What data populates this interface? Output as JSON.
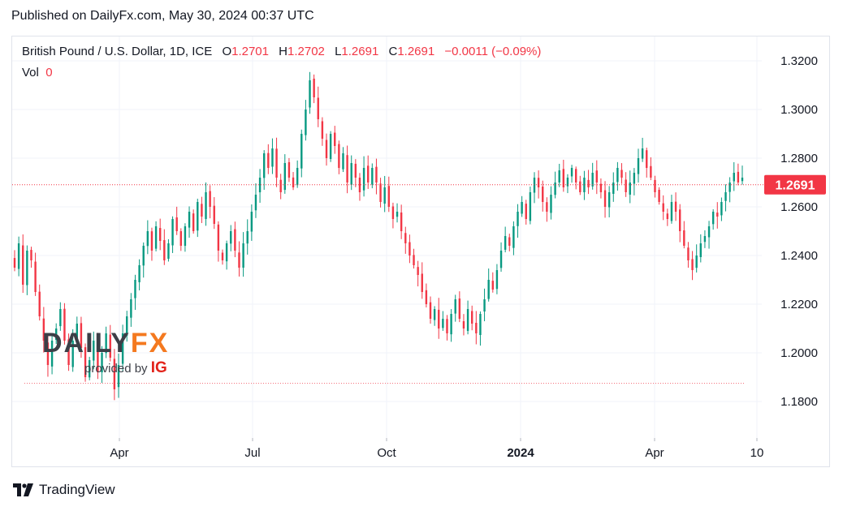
{
  "published": "Published on DailyFx.com, May 30, 2024 00:37 UTC",
  "legend": {
    "symbol": "British Pound / U.S. Dollar, 1D, ICE",
    "open_label": "O",
    "open": "1.2701",
    "high_label": "H",
    "high": "1.2702",
    "low_label": "L",
    "low": "1.2691",
    "close_label": "C",
    "close": "1.2691",
    "change": "−0.0011 (−0.09%)"
  },
  "volume": {
    "label": "Vol",
    "value": "0"
  },
  "watermark": {
    "brand_part1": "DAILY",
    "brand_part2": "FX",
    "provided_by": "provided by",
    "ig": "IG"
  },
  "footer": {
    "brand": "TradingView"
  },
  "colors": {
    "up": "#089981",
    "down": "#f23645",
    "price_line": "#f23645",
    "grid": "#f0f3fa",
    "text": "#131722"
  },
  "chart_data": {
    "type": "candlestick",
    "symbol": "British Pound / U.S. Dollar, 1D, ICE",
    "y_ticks": [
      "1.1800",
      "1.2000",
      "1.2200",
      "1.2400",
      "1.2600",
      "1.2800",
      "1.3000",
      "1.3200"
    ],
    "ylim": [
      1.168,
      1.332
    ],
    "x_ticks": [
      "Apr",
      "Jul",
      "Oct",
      "2024",
      "Apr",
      "10"
    ],
    "last_price": 1.2691,
    "last_price_label": "1.2691",
    "reference_level": 1.1875,
    "grid": true,
    "closes": [
      1.235,
      1.245,
      1.228,
      1.242,
      1.238,
      1.225,
      1.215,
      1.205,
      1.195,
      1.205,
      1.21,
      1.218,
      1.205,
      1.195,
      1.205,
      1.212,
      1.202,
      1.19,
      1.197,
      1.205,
      1.192,
      1.2,
      1.208,
      1.198,
      1.185,
      1.195,
      1.208,
      1.215,
      1.222,
      1.23,
      1.236,
      1.244,
      1.25,
      1.242,
      1.252,
      1.246,
      1.238,
      1.245,
      1.255,
      1.25,
      1.244,
      1.252,
      1.258,
      1.25,
      1.262,
      1.256,
      1.266,
      1.26,
      1.253,
      1.242,
      1.238,
      1.245,
      1.25,
      1.242,
      1.235,
      1.245,
      1.25,
      1.258,
      1.265,
      1.272,
      1.282,
      1.276,
      1.284,
      1.272,
      1.266,
      1.278,
      1.272,
      1.268,
      1.276,
      1.29,
      1.3,
      1.312,
      1.305,
      1.296,
      1.288,
      1.28,
      1.29,
      1.285,
      1.276,
      1.282,
      1.27,
      1.278,
      1.272,
      1.266,
      1.276,
      1.27,
      1.276,
      1.27,
      1.262,
      1.268,
      1.26,
      1.255,
      1.258,
      1.25,
      1.245,
      1.24,
      1.236,
      1.232,
      1.225,
      1.22,
      1.214,
      1.218,
      1.21,
      1.214,
      1.208,
      1.216,
      1.222,
      1.214,
      1.21,
      1.218,
      1.212,
      1.208,
      1.216,
      1.222,
      1.23,
      1.226,
      1.234,
      1.242,
      1.248,
      1.244,
      1.252,
      1.258,
      1.262,
      1.255,
      1.266,
      1.272,
      1.268,
      1.262,
      1.258,
      1.265,
      1.27,
      1.275,
      1.268,
      1.272,
      1.276,
      1.27,
      1.266,
      1.272,
      1.268,
      1.274,
      1.27,
      1.266,
      1.26,
      1.266,
      1.27,
      1.276,
      1.272,
      1.266,
      1.27,
      1.274,
      1.28,
      1.284,
      1.276,
      1.272,
      1.266,
      1.262,
      1.258,
      1.255,
      1.262,
      1.258,
      1.25,
      1.244,
      1.238,
      1.234,
      1.24,
      1.245,
      1.248,
      1.252,
      1.258,
      1.256,
      1.262,
      1.266,
      1.27,
      1.274,
      1.27,
      1.272
    ]
  }
}
